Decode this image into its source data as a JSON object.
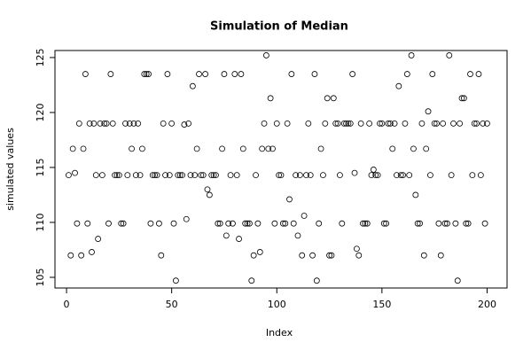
{
  "chart_data": {
    "type": "scatter",
    "title": "Simulation of Median",
    "x_label": "Index",
    "y_label": "simulated values",
    "x": [
      1,
      2,
      3,
      4,
      5,
      6,
      7,
      8,
      9,
      10,
      11,
      12,
      13,
      14,
      15,
      16,
      17,
      18,
      19,
      20,
      21,
      22,
      23,
      24,
      25,
      26,
      27,
      28,
      29,
      30,
      31,
      32,
      33,
      34,
      35,
      36,
      37,
      38,
      39,
      40,
      41,
      42,
      43,
      44,
      45,
      46,
      47,
      48,
      49,
      50,
      51,
      52,
      53,
      54,
      55,
      56,
      57,
      58,
      59,
      60,
      61,
      62,
      63,
      64,
      65,
      66,
      67,
      68,
      69,
      70,
      71,
      72,
      73,
      74,
      75,
      76,
      77,
      78,
      79,
      80,
      81,
      82,
      83,
      84,
      85,
      86,
      87,
      88,
      89,
      90,
      91,
      92,
      93,
      94,
      95,
      96,
      97,
      98,
      99,
      100,
      101,
      102,
      103,
      104,
      105,
      106,
      107,
      108,
      109,
      110,
      111,
      112,
      113,
      114,
      115,
      116,
      117,
      118,
      119,
      120,
      121,
      122,
      123,
      124,
      125,
      126,
      127,
      128,
      129,
      130,
      131,
      132,
      133,
      134,
      135,
      136,
      137,
      138,
      139,
      140,
      141,
      142,
      143,
      144,
      145,
      146,
      147,
      148,
      149,
      150,
      151,
      152,
      153,
      154,
      155,
      156,
      157,
      158,
      159,
      160,
      161,
      162,
      163,
      164,
      165,
      166,
      167,
      168,
      169,
      170,
      171,
      172,
      173,
      174,
      175,
      176,
      177,
      178,
      179,
      180,
      181,
      182,
      183,
      184,
      185,
      186,
      187,
      188,
      189,
      190,
      191,
      192,
      193,
      194,
      195,
      196,
      197,
      198,
      199,
      200
    ],
    "values": [
      114.3,
      107.0,
      116.7,
      114.5,
      109.9,
      119.0,
      107.0,
      116.7,
      123.5,
      109.9,
      119.0,
      107.3,
      119.0,
      114.3,
      108.5,
      119.0,
      114.3,
      119.0,
      119.0,
      109.9,
      123.5,
      119.0,
      114.3,
      114.3,
      114.3,
      109.9,
      109.9,
      119.0,
      114.3,
      119.0,
      116.7,
      119.0,
      114.3,
      119.0,
      114.3,
      116.7,
      123.5,
      123.5,
      123.5,
      109.9,
      114.3,
      114.3,
      114.3,
      109.9,
      107.0,
      119.0,
      114.3,
      123.5,
      114.3,
      119.0,
      109.9,
      104.7,
      114.3,
      114.3,
      114.3,
      118.9,
      110.3,
      119.0,
      114.3,
      122.4,
      114.3,
      116.7,
      123.5,
      114.3,
      114.3,
      123.5,
      113.0,
      112.5,
      114.3,
      114.3,
      114.3,
      109.9,
      109.9,
      116.7,
      123.5,
      108.8,
      109.9,
      114.3,
      109.9,
      123.5,
      114.3,
      108.5,
      123.5,
      116.7,
      109.9,
      109.9,
      109.9,
      104.7,
      107.0,
      114.3,
      109.9,
      107.3,
      116.7,
      119.0,
      125.2,
      116.7,
      121.3,
      116.7,
      109.9,
      119.0,
      114.3,
      114.3,
      109.9,
      109.9,
      119.0,
      112.1,
      123.5,
      109.9,
      114.3,
      108.8,
      114.3,
      107.0,
      110.6,
      114.3,
      119.0,
      114.3,
      107.0,
      123.5,
      104.7,
      109.9,
      116.7,
      114.3,
      119.0,
      121.3,
      107.0,
      107.0,
      121.3,
      119.0,
      119.0,
      114.3,
      109.9,
      119.0,
      119.0,
      119.0,
      119.0,
      123.5,
      114.5,
      107.6,
      107.0,
      119.0,
      109.9,
      109.9,
      109.9,
      119.0,
      114.3,
      114.8,
      114.3,
      114.3,
      119.0,
      119.0,
      109.9,
      109.9,
      119.0,
      119.0,
      116.7,
      119.0,
      114.3,
      122.4,
      114.3,
      114.3,
      119.0,
      123.5,
      114.3,
      125.2,
      116.7,
      112.5,
      109.9,
      109.9,
      119.0,
      107.0,
      116.7,
      120.1,
      114.3,
      123.5,
      119.0,
      119.0,
      109.9,
      107.0,
      119.0,
      109.9,
      109.9,
      125.2,
      114.3,
      119.0,
      109.9,
      104.7,
      119.0,
      121.3,
      121.3,
      109.9,
      109.9,
      123.5,
      114.3,
      119.0,
      119.0,
      123.5,
      114.3,
      119.0,
      109.9,
      119.0
    ],
    "color": "#000000",
    "xlim": [
      -5.5,
      209.5
    ],
    "xticks": [
      0,
      50,
      100,
      150,
      200
    ],
    "ylim": [
      104.03,
      125.64
    ],
    "yticks": [
      105,
      110,
      115,
      120,
      125
    ]
  }
}
